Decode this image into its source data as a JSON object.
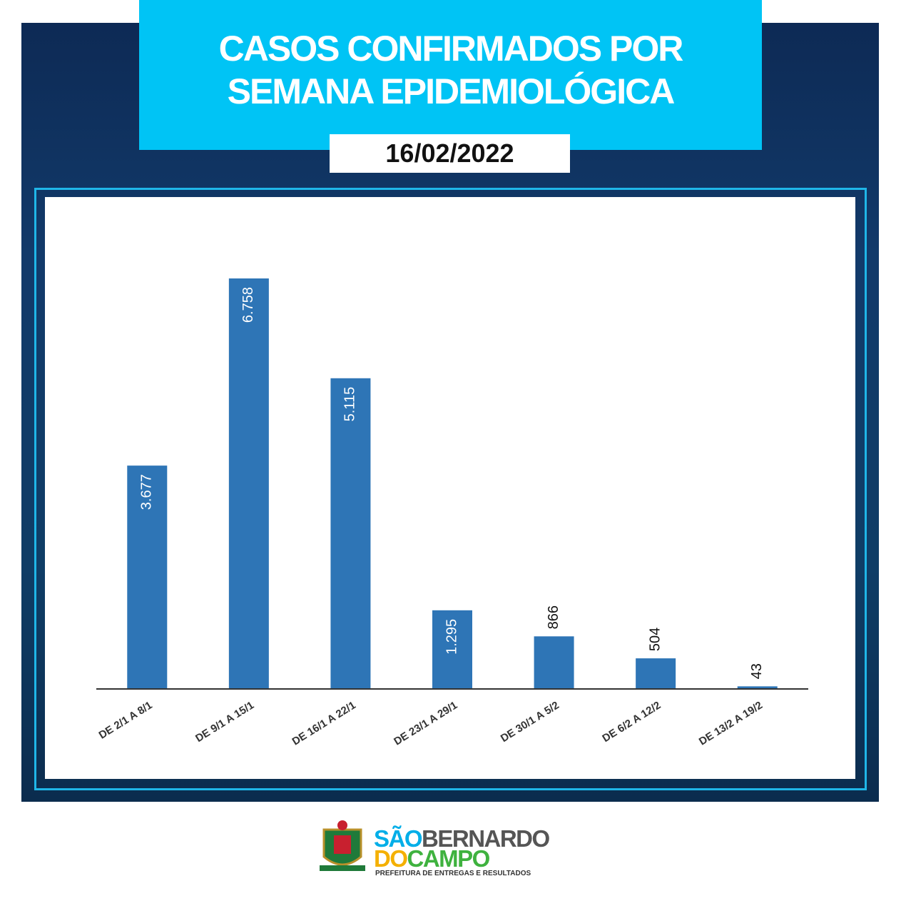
{
  "chart_data": {
    "type": "bar",
    "title": "CASOS CONFIRMADOS POR SEMANA EPIDEMIOLÓGICA",
    "subtitle": "16/02/2022",
    "categories": [
      "DE 2/1 A 8/1",
      "DE 9/1 A 15/1",
      "DE 16/1 A 22/1",
      "DE 23/1 A 29/1",
      "DE 30/1 A 5/2",
      "DE 6/2 A 12/2",
      "DE 13/2 A 19/2"
    ],
    "values": [
      3677,
      6758,
      5115,
      1295,
      866,
      504,
      43
    ],
    "value_labels": [
      "3.677",
      "6.758",
      "5.115",
      "1.295",
      "866",
      "504",
      "43"
    ],
    "color": "#2e75b6"
  },
  "logo": {
    "name_part1": "SÃO",
    "name_part2": "BERNARDO",
    "name_part3": "DO",
    "name_part4": "CAMPO",
    "tagline": "PREFEITURA DE ENTREGAS E RESULTADOS"
  }
}
